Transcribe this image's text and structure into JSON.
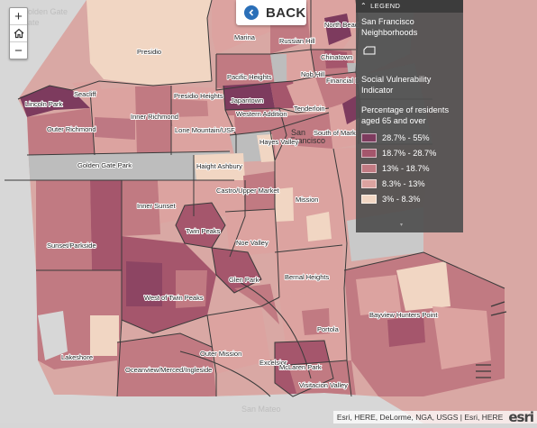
{
  "map": {
    "watermark_top": "Golden Gate",
    "watermark_bottom": "San Mateo",
    "city_label_line1": "San",
    "city_label_line2": "Francisco",
    "neighborhoods": [
      {
        "name": "Presidio"
      },
      {
        "name": "Marina"
      },
      {
        "name": "Russian Hill"
      },
      {
        "name": "North Beach"
      },
      {
        "name": "Chinatown"
      },
      {
        "name": "Nob Hill"
      },
      {
        "name": "Financial D"
      },
      {
        "name": "Pacific Heights"
      },
      {
        "name": "Seacliff"
      },
      {
        "name": "Lincoln Park"
      },
      {
        "name": "Presidio Heights"
      },
      {
        "name": "Japantown"
      },
      {
        "name": "Tenderloin"
      },
      {
        "name": "Inner Richmond"
      },
      {
        "name": "Western Addition"
      },
      {
        "name": "Outer Richmond"
      },
      {
        "name": "Lone Mountain/USF"
      },
      {
        "name": "Hayes Valley"
      },
      {
        "name": "South of Mark"
      },
      {
        "name": "Golden Gate Park"
      },
      {
        "name": "Haight Ashbury"
      },
      {
        "name": "Castro/Upper Market"
      },
      {
        "name": "Inner Sunset"
      },
      {
        "name": "Mission"
      },
      {
        "name": "Twin Peaks"
      },
      {
        "name": "Noe Valley"
      },
      {
        "name": "Sunset/Parkside"
      },
      {
        "name": "Glen Park"
      },
      {
        "name": "Bernal Heights"
      },
      {
        "name": "West of Twin Peaks"
      },
      {
        "name": "Bayview Hunters Point"
      },
      {
        "name": "Portola"
      },
      {
        "name": "Lakeshore"
      },
      {
        "name": "Outer Mission"
      },
      {
        "name": "Excelsior"
      },
      {
        "name": "McLaren Park"
      },
      {
        "name": "Oceanview/Merced/Ingleside"
      },
      {
        "name": "Visitacion Valley"
      }
    ]
  },
  "controls": {
    "zoom_in": "+",
    "home_icon": "home-icon",
    "zoom_out": "−",
    "back_label": "BACK"
  },
  "legend": {
    "header": "LEGEND",
    "layer1_title": "San Francisco Neighborhoods",
    "layer2_title": "Social Vulnerability Indicator",
    "layer2_subtitle": "Percentage of residents aged 65 and over",
    "classes": [
      {
        "label": "28.7% - 55%",
        "color": "#7d3b5e"
      },
      {
        "label": "18.7% - 28.7%",
        "color": "#a5566c"
      },
      {
        "label": "13% - 18.7%",
        "color": "#c17a82"
      },
      {
        "label": "8.3% - 13%",
        "color": "#dca3a0"
      },
      {
        "label": "3% - 8.3%",
        "color": "#f1d6c3"
      }
    ]
  },
  "attribution": {
    "text": "Esri, HERE, DeLorme, NGA, USGS | Esri, HERE",
    "logo": "esri"
  }
}
